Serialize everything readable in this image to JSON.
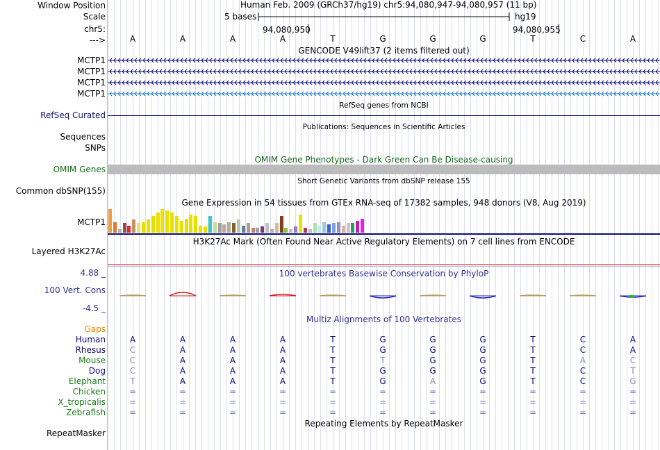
{
  "header": {
    "window_position_label": "Window Position",
    "scale_label": "Scale",
    "chrom_label": "chr5:",
    "strand_label": "--->",
    "assembly_text": "Human Feb. 2009 (GRCh37/hg19)   chr5:94,080,947-94,080,957 (11 bp)",
    "scale_text": "5 bases",
    "db_text": "hg19",
    "pos1": "94,080,950",
    "pos2": "94,080,955"
  },
  "reference_bases": [
    "A",
    "A",
    "A",
    "A",
    "T",
    "G",
    "G",
    "G",
    "T",
    "C",
    "A"
  ],
  "tracks": {
    "gencode": {
      "title": "GENCODE V49lift37 (2 items filtered out)",
      "rows": [
        {
          "label": "MCTP1",
          "color": "#0c0c78"
        },
        {
          "label": "MCTP1",
          "color": "#0c0c78"
        },
        {
          "label": "MCTP1",
          "color": "#0c0c78"
        },
        {
          "label": "MCTP1",
          "color": "#1c7cbc"
        }
      ]
    },
    "refseq": {
      "title": "RefSeq genes from NCBI",
      "label": "RefSeq Curated"
    },
    "publications": {
      "title": "Publications: Sequences in Scientific Articles",
      "label1": "Sequences",
      "label2": "SNPs"
    },
    "omim": {
      "title": "OMIM Gene Phenotypes - Dark Green Can Be Disease-causing",
      "label": "OMIM Genes"
    },
    "dbsnp": {
      "title": "Short Genetic Variants from dbSNP release 155",
      "label": "Common dbSNP(155)"
    },
    "gtex": {
      "title": "Gene Expression in 54 tissues from GTEx RNA-seq of 17382 samples, 948 donors (V8, Aug 2019)",
      "label": "MCTP1",
      "values": [
        100,
        45,
        15,
        40,
        30,
        55,
        40,
        45,
        55,
        70,
        85,
        100,
        95,
        85,
        70,
        50,
        60,
        75,
        70,
        30,
        25,
        70,
        45,
        40,
        35,
        45,
        40,
        55,
        30,
        40,
        20,
        20,
        25,
        40,
        15,
        40,
        70,
        20,
        15,
        25,
        75,
        20,
        15,
        40,
        30,
        45,
        35,
        40,
        45,
        30,
        40,
        40,
        50,
        60
      ],
      "colors": [
        "#f0a040",
        "#e07830",
        "#b0b0b0",
        "#a04848",
        "#e02828",
        "#c89060",
        "#e8e070",
        "#e8e000",
        "#e8e000",
        "#e8e000",
        "#e8e000",
        "#e8e000",
        "#e8e000",
        "#e8e000",
        "#e8e000",
        "#e8e000",
        "#e8e000",
        "#e8e000",
        "#e8e000",
        "#e8e000",
        "#e8e000",
        "#40c8c8",
        "#c0e0a0",
        "#a0a0a0",
        "#c0a8a0",
        "#b0b098",
        "#806030",
        "#c0c0b0",
        "#6080a0",
        "#b89888",
        "#c08080",
        "#a0a0a0",
        "#803080",
        "#c0c0c0",
        "#b0b0c0",
        "#d8b8a0",
        "#804020",
        "#90c040",
        "#c0c0c0",
        "#9080c0",
        "#f0e000",
        "#a04060",
        "#c0c0c0",
        "#b0e0b0",
        "#c0e8e8",
        "#a0c8e0",
        "#4060d0",
        "#80a0e0",
        "#9090d0",
        "#e0b0a0",
        "#c8c8c8",
        "#20a060",
        "#c020b0",
        "#e020f0"
      ]
    },
    "h3k27ac": {
      "title": "H3K27Ac Mark (Often Found Near Active Regulatory Elements) on 7 cell lines from ENCODE",
      "label": "Layered H3K27Ac"
    },
    "phylop": {
      "title": "100 vertebrates Basewise Conservation by PhyloP",
      "label": "100 Vert. Cons",
      "max_label": "4.88 _",
      "min_label": "-4.5 _",
      "values": [
        0.15,
        0.9,
        0.05,
        0.35,
        0.05,
        -0.5,
        0.05,
        -0.5,
        0.05,
        0.15,
        -0.4
      ],
      "colors": {
        "positive": "#d02020",
        "negative": "#2020c0",
        "neutral": "#b0a060",
        "green": "#20c020"
      }
    },
    "multiz": {
      "title": "Multiz Alignments of 100 Vertebrates",
      "gaps_label": "Gaps",
      "species": [
        {
          "name": "Human",
          "name_color": "#0c0c78",
          "bases": [
            "A",
            "A",
            "A",
            "A",
            "T",
            "G",
            "G",
            "G",
            "T",
            "C",
            "A"
          ],
          "muted": [
            false,
            false,
            false,
            false,
            false,
            false,
            false,
            false,
            false,
            false,
            false
          ]
        },
        {
          "name": "Rhesus",
          "name_color": "#0c0c78",
          "bases": [
            "C",
            "A",
            "A",
            "A",
            "T",
            "G",
            "G",
            "G",
            "T",
            "C",
            "A"
          ],
          "muted": [
            true,
            false,
            false,
            false,
            false,
            false,
            false,
            false,
            false,
            false,
            false
          ]
        },
        {
          "name": "Mouse",
          "name_color": "#1a7a1a",
          "bases": [
            "C",
            "A",
            "A",
            "A",
            "T",
            "T",
            "G",
            "G",
            "T",
            "A",
            "C"
          ],
          "muted": [
            true,
            false,
            false,
            false,
            false,
            true,
            false,
            false,
            false,
            true,
            true
          ]
        },
        {
          "name": "Dog",
          "name_color": "#0c0c78",
          "bases": [
            "C",
            "A",
            "A",
            "A",
            "T",
            "G",
            "G",
            "G",
            "T",
            "C",
            "T"
          ],
          "muted": [
            true,
            false,
            false,
            false,
            false,
            false,
            false,
            false,
            false,
            false,
            true
          ]
        },
        {
          "name": "Elephant",
          "name_color": "#1a7a1a",
          "bases": [
            "T",
            "A",
            "A",
            "A",
            "T",
            "G",
            "A",
            "G",
            "T",
            "C",
            "G"
          ],
          "muted": [
            true,
            false,
            false,
            false,
            false,
            false,
            true,
            false,
            false,
            false,
            true
          ]
        },
        {
          "name": "Chicken",
          "name_color": "#1a7a1a",
          "bases": [
            "=",
            "=",
            "=",
            "=",
            "=",
            "=",
            "=",
            "=",
            "=",
            "=",
            "="
          ],
          "muted": [
            true,
            true,
            true,
            true,
            true,
            true,
            true,
            true,
            true,
            true,
            true
          ]
        },
        {
          "name": "X_tropicalis",
          "name_color": "#1a7a1a",
          "bases": [
            "=",
            "=",
            "=",
            "=",
            "=",
            "=",
            "=",
            "=",
            "=",
            "=",
            "="
          ],
          "muted": [
            true,
            true,
            true,
            true,
            true,
            true,
            true,
            true,
            true,
            true,
            true
          ]
        },
        {
          "name": "Zebrafish",
          "name_color": "#1a7a1a",
          "bases": [
            "=",
            "=",
            "=",
            "=",
            "=",
            "=",
            "=",
            "=",
            "=",
            "=",
            "="
          ],
          "muted": [
            true,
            true,
            true,
            true,
            true,
            true,
            true,
            true,
            true,
            true,
            true
          ]
        }
      ]
    },
    "repeatmasker": {
      "title": "Repeating Elements by RepeatMasker",
      "label": "RepeatMasker"
    }
  },
  "colors": {
    "gencode_strand": "#0c0c78",
    "gencode_alt": "#1c7cbc",
    "refseq": "#0c0c78",
    "omim_bar": "#bcbcbc",
    "h3k27ac_line": "#e08080",
    "gtex_baseline": "#0c0c78",
    "phylop_text": "#303090",
    "gaps_text": "#e08a00",
    "omim_text": "#1a6a1a"
  }
}
